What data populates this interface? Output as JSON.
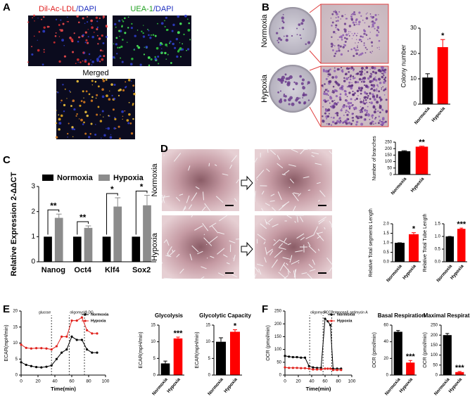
{
  "figure": {
    "panel_labels": [
      "A",
      "B",
      "C",
      "D",
      "E",
      "F"
    ],
    "A": {
      "label_1": [
        "Dil-Ac-LDL",
        "/DAPI"
      ],
      "label_2": [
        "UEA-1",
        "/DAPI"
      ],
      "label_3": "Merged"
    },
    "B": {
      "rows": [
        "Normoxia",
        "Hypoxia"
      ]
    },
    "D": {
      "rows": [
        "Normoxia",
        "Hypoxia"
      ]
    }
  },
  "chart_data": [
    {
      "type": "bar",
      "ylabel": "Colony number",
      "categories": [
        "Normoxia",
        "Hypoxia"
      ],
      "values": [
        10.5,
        22.5
      ],
      "errors": [
        1.5,
        3
      ],
      "colors": [
        "#000000",
        "#ff0000"
      ],
      "annotation": "*",
      "ylim": [
        0,
        30
      ],
      "yticks": [
        0,
        10,
        20,
        30
      ]
    },
    {
      "type": "grouped_bar",
      "ylabel": "Relative Expression 2-ΔΔCT",
      "categories": [
        "Nanog",
        "Oct4",
        "Klf4",
        "Sox2"
      ],
      "series": [
        {
          "name": "Normoxia",
          "color": "#000000",
          "values": [
            1,
            1,
            1,
            1
          ],
          "errors": [
            0,
            0,
            0,
            0
          ]
        },
        {
          "name": "Hypoxia",
          "color": "#8c8c8c",
          "values": [
            1.75,
            1.35,
            2.2,
            2.25
          ],
          "errors": [
            0.15,
            0.08,
            0.35,
            0.4
          ]
        }
      ],
      "annotations": [
        "**",
        "**",
        "*",
        "*"
      ],
      "ylim": [
        0,
        3
      ],
      "yticks": [
        0,
        1,
        2,
        3
      ]
    },
    {
      "type": "bar",
      "ylabel": "Number of branches",
      "categories": [
        "Normoxia",
        "Hypoxia"
      ],
      "values": [
        180,
        215
      ],
      "errors": [
        4,
        4
      ],
      "colors": [
        "#000000",
        "#ff0000"
      ],
      "annotation": "**",
      "ylim": [
        0,
        250
      ],
      "yticks": [
        0,
        50,
        100,
        150,
        200,
        250
      ]
    },
    {
      "type": "bar",
      "ylabel": "Relative Total segments Length",
      "categories": [
        "Normoxia",
        "Hypoxia"
      ],
      "values": [
        1,
        1.45
      ],
      "errors": [
        0,
        0.08
      ],
      "colors": [
        "#000000",
        "#ff0000"
      ],
      "annotation": "*",
      "ylim": [
        0,
        2
      ],
      "yticks": [
        {
          "value": 0,
          "label": "0.0"
        },
        {
          "value": 0.5,
          "label": "0.5"
        },
        {
          "value": 1,
          "label": "1.0"
        },
        {
          "value": 1.5,
          "label": "1.5"
        },
        {
          "value": 2,
          "label": "2.0"
        }
      ]
    },
    {
      "type": "bar",
      "ylabel": "Relative Total Tube Length",
      "categories": [
        "Normoxia",
        "Hypoxia"
      ],
      "values": [
        1,
        1.3
      ],
      "errors": [
        0,
        0.03
      ],
      "colors": [
        "#000000",
        "#ff0000"
      ],
      "annotation": "***",
      "ylim": [
        0,
        1.5
      ],
      "yticks": [
        {
          "value": 0,
          "label": "0.0"
        },
        {
          "value": 0.5,
          "label": "0.5"
        },
        {
          "value": 1,
          "label": "1.0"
        },
        {
          "value": 1.5,
          "label": "1.5"
        }
      ]
    },
    {
      "type": "line",
      "ylabel": "ECAR(mpH/min)",
      "xlabel": "Time(min)",
      "x": [
        0,
        6,
        12,
        18,
        24,
        30,
        36,
        42,
        48,
        54,
        60,
        66,
        72,
        78,
        84,
        90
      ],
      "series": [
        {
          "name": "Normoxia",
          "color": "#000000",
          "values": [
            4,
            3.2,
            2.8,
            2.5,
            2.4,
            2.6,
            3,
            5,
            7,
            8,
            12,
            11,
            11,
            8,
            7,
            7
          ]
        },
        {
          "name": "Hypoxia",
          "color": "#e0201b",
          "values": [
            9.5,
            8.5,
            8.3,
            8.4,
            8.4,
            8.3,
            8,
            9,
            12,
            12,
            17,
            17,
            18,
            14,
            13,
            13
          ]
        }
      ],
      "events": [
        {
          "x": 36,
          "label": "glucose"
        },
        {
          "x": 57,
          "label": "oligomycin"
        },
        {
          "x": 75,
          "label": "2-DG"
        }
      ],
      "xlim": [
        0,
        100
      ],
      "xticks": [
        0,
        20,
        40,
        60,
        80,
        100
      ],
      "ylim": [
        0,
        20
      ],
      "yticks": [
        0,
        5,
        10,
        15,
        20
      ]
    },
    {
      "type": "bar",
      "title": "Glycolysis",
      "ylabel": "ECAR(mpH/min)",
      "categories": [
        "Normoxia",
        "Hypoxia"
      ],
      "values": [
        3.5,
        11
      ],
      "errors": [
        0.7,
        0.4
      ],
      "colors": [
        "#000000",
        "#ff0000"
      ],
      "annotation": "***",
      "ylim": [
        0,
        15
      ],
      "yticks": [
        0,
        5,
        10,
        15
      ]
    },
    {
      "type": "bar",
      "title": "Glycolytic Capacity",
      "ylabel": "ECAR(mpH/min)",
      "categories": [
        "Normoxia",
        "Hypoxia"
      ],
      "values": [
        10,
        13
      ],
      "errors": [
        1.2,
        0.6
      ],
      "colors": [
        "#000000",
        "#ff0000"
      ],
      "annotation": "*",
      "ylim": [
        0,
        15
      ],
      "yticks": [
        0,
        5,
        10,
        15
      ]
    },
    {
      "type": "line",
      "ylabel": "OCR (pmol/min)",
      "xlabel": "Time(min)",
      "x": [
        0,
        6,
        12,
        18,
        24,
        30,
        36,
        42,
        48,
        54,
        60,
        64,
        68,
        72,
        78,
        84
      ],
      "series": [
        {
          "name": "Normoxia",
          "color": "#000000",
          "values": [
            75,
            72,
            70,
            70,
            68,
            68,
            35,
            30,
            28,
            28,
            220,
            210,
            195,
            25,
            25,
            25
          ]
        },
        {
          "name": "Hypoxia",
          "color": "#e0201b",
          "values": [
            30,
            28,
            28,
            28,
            27,
            27,
            25,
            22,
            22,
            22,
            25,
            25,
            25,
            20,
            20,
            20
          ]
        }
      ],
      "events": [
        {
          "x": 37,
          "label": "oligomycin"
        },
        {
          "x": 57,
          "label": "FCCP"
        },
        {
          "x": 70,
          "label": "rotenone& antimycin A"
        }
      ],
      "xlim": [
        0,
        100
      ],
      "xticks": [
        0,
        20,
        40,
        60,
        80,
        100
      ],
      "ylim": [
        0,
        250
      ],
      "yticks": [
        0,
        50,
        100,
        150,
        200,
        250
      ]
    },
    {
      "type": "bar",
      "title": "Basal Respiration",
      "ylabel": "OCR (pmol/min)",
      "categories": [
        "Normoxia",
        "Hypoxia"
      ],
      "values": [
        52,
        15
      ],
      "errors": [
        1.5,
        2.5
      ],
      "colors": [
        "#000000",
        "#ff0000"
      ],
      "annotation": "***",
      "ylim": [
        0,
        60
      ],
      "yticks": [
        0,
        20,
        40,
        60
      ]
    },
    {
      "type": "bar",
      "title": "Maximal Respiration",
      "ylabel": "OCR (pmol/min)",
      "categories": [
        "Normoxia",
        "Hypoxia"
      ],
      "values": [
        200,
        15
      ],
      "errors": [
        8,
        3
      ],
      "colors": [
        "#000000",
        "#ff0000"
      ],
      "annotation": "***",
      "ylim": [
        0,
        250
      ],
      "yticks": [
        0,
        50,
        100,
        150,
        200,
        250
      ]
    }
  ]
}
